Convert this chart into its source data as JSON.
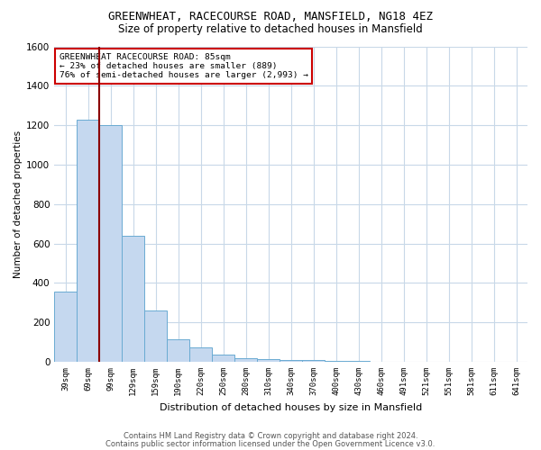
{
  "title1": "GREENWHEAT, RACECOURSE ROAD, MANSFIELD, NG18 4EZ",
  "title2": "Size of property relative to detached houses in Mansfield",
  "xlabel": "Distribution of detached houses by size in Mansfield",
  "ylabel": "Number of detached properties",
  "categories": [
    "39sqm",
    "69sqm",
    "99sqm",
    "129sqm",
    "159sqm",
    "190sqm",
    "220sqm",
    "250sqm",
    "280sqm",
    "310sqm",
    "340sqm",
    "370sqm",
    "400sqm",
    "430sqm",
    "460sqm",
    "491sqm",
    "521sqm",
    "551sqm",
    "581sqm",
    "611sqm",
    "641sqm"
  ],
  "values": [
    355,
    1230,
    1200,
    640,
    260,
    115,
    75,
    35,
    20,
    14,
    10,
    8,
    6,
    4,
    0,
    0,
    0,
    0,
    0,
    0,
    0
  ],
  "bar_color": "#c5d8ef",
  "bar_edge_color": "#6aabd2",
  "vline_x": 1.5,
  "vline_color": "#8b0000",
  "annotation_line1": "GREENWHEAT RACECOURSE ROAD: 85sqm",
  "annotation_line2": "← 23% of detached houses are smaller (889)",
  "annotation_line3": "76% of semi-detached houses are larger (2,993) →",
  "annotation_box_color": "#ffffff",
  "annotation_box_edge": "#cc0000",
  "ylim": [
    0,
    1600
  ],
  "yticks": [
    0,
    200,
    400,
    600,
    800,
    1000,
    1200,
    1400,
    1600
  ],
  "footer1": "Contains HM Land Registry data © Crown copyright and database right 2024.",
  "footer2": "Contains public sector information licensed under the Open Government Licence v3.0.",
  "bg_color": "#ffffff",
  "grid_color": "#c8d8e8"
}
